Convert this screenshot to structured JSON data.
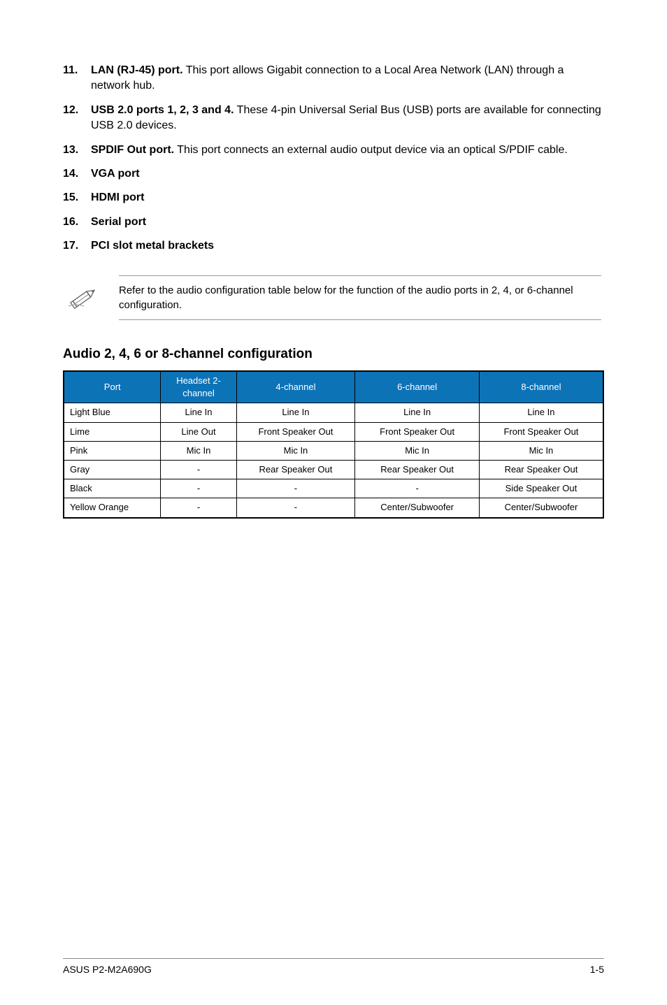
{
  "list": {
    "items": [
      {
        "num": "11.",
        "bold": "LAN (RJ-45) port.",
        "text": " This port allows Gigabit connection to a Local Area Network (LAN) through a network hub."
      },
      {
        "num": "12.",
        "bold": "USB 2.0 ports 1, 2, 3 and 4.",
        "text": " These 4-pin Universal Serial Bus (USB) ports are available for connecting USB 2.0 devices."
      },
      {
        "num": "13.",
        "bold": "SPDIF Out port.",
        "text": " This port connects an external audio output device via an optical S/PDIF cable."
      },
      {
        "num": "14.",
        "bold": "VGA port",
        "text": ""
      },
      {
        "num": "15.",
        "bold": "HDMI port",
        "text": ""
      },
      {
        "num": "16.",
        "bold": "Serial port",
        "text": ""
      },
      {
        "num": "17.",
        "bold": "PCI slot metal brackets",
        "text": ""
      }
    ]
  },
  "note": {
    "text": "Refer to the audio configuration table below for the function of the audio ports in 2, 4, or 6-channel configuration."
  },
  "section_title": "Audio 2, 4, 6 or 8-channel configuration",
  "table": {
    "header_bg": "#0d73b7",
    "header_color": "#ffffff",
    "col_widths": [
      "18%",
      "14%",
      "22%",
      "23%",
      "23%"
    ],
    "headers": [
      "Port",
      "Headset 2-channel",
      "4-channel",
      "6-channel",
      "8-channel"
    ],
    "rows": [
      [
        "Light Blue",
        "Line In",
        "Line In",
        "Line In",
        "Line In"
      ],
      [
        "Lime",
        "Line Out",
        "Front Speaker Out",
        "Front Speaker Out",
        "Front Speaker Out"
      ],
      [
        "Pink",
        "Mic In",
        "Mic In",
        "Mic In",
        "Mic In"
      ],
      [
        "Gray",
        "-",
        "Rear Speaker Out",
        "Rear Speaker Out",
        "Rear Speaker Out"
      ],
      [
        "Black",
        "-",
        "-",
        "-",
        "Side Speaker Out"
      ],
      [
        "Yellow Orange",
        "-",
        "-",
        "Center/Subwoofer",
        "Center/Subwoofer"
      ]
    ]
  },
  "footer": {
    "left": "ASUS P2-M2A690G",
    "right": "1-5"
  }
}
